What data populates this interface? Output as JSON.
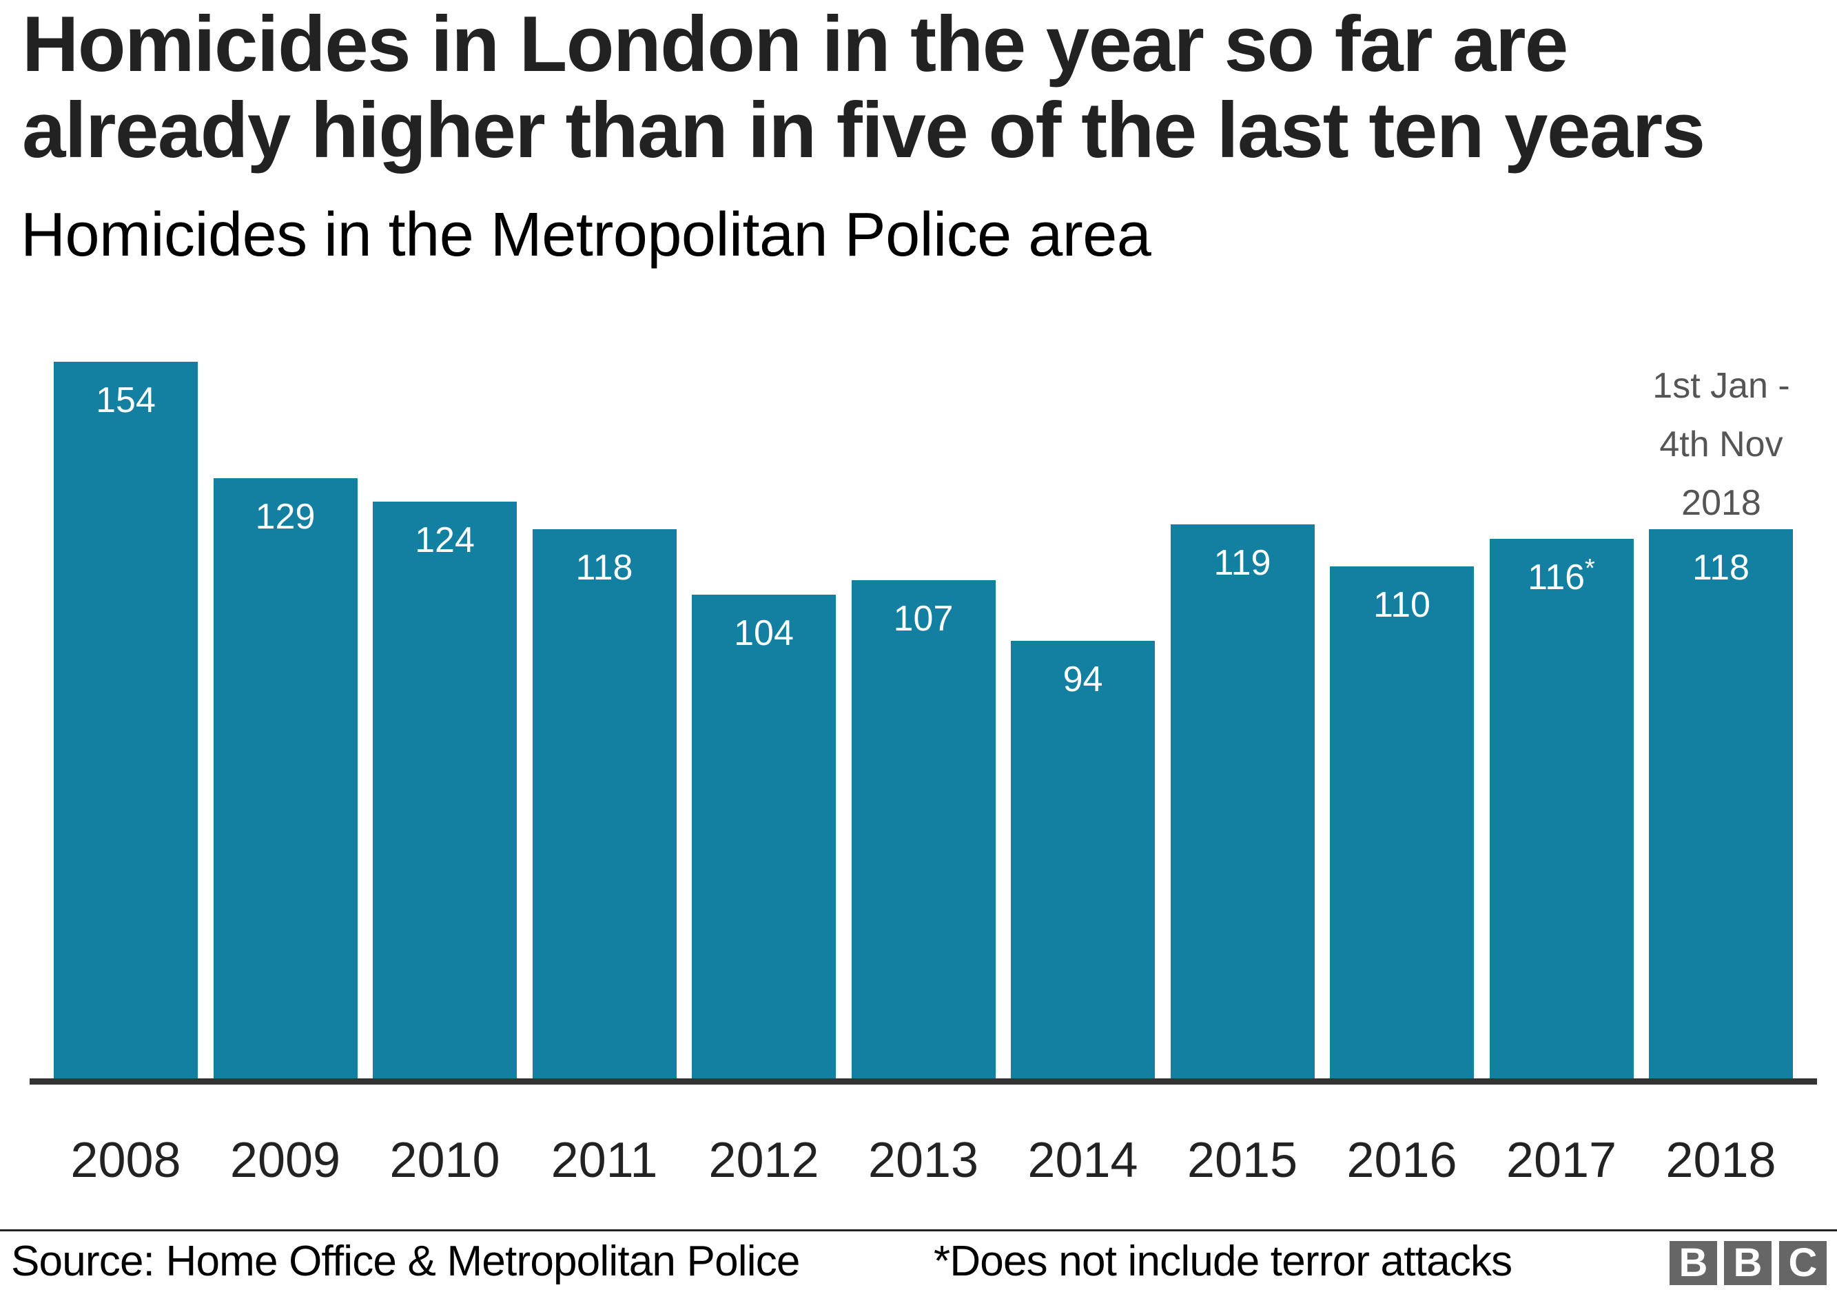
{
  "header": {
    "title_lines": [
      "Homicides in London in the year so far are",
      "already higher than in five of the last ten years"
    ],
    "subtitle": "Homicides in the Metropolitan Police area"
  },
  "chart_data": {
    "type": "bar",
    "title": "Homicides in London in the year so far are already higher than in five of the last ten years",
    "subtitle": "Homicides in the Metropolitan Police area",
    "xlabel": "",
    "ylabel": "",
    "categories": [
      "2008",
      "2009",
      "2010",
      "2011",
      "2012",
      "2013",
      "2014",
      "2015",
      "2016",
      "2017",
      "2018"
    ],
    "values": [
      154,
      129,
      124,
      118,
      104,
      107,
      94,
      119,
      110,
      116,
      118
    ],
    "value_labels": [
      "154",
      "129",
      "124",
      "118",
      "104",
      "107",
      "94",
      "119",
      "110",
      "116",
      "118"
    ],
    "value_label_markers": [
      "",
      "",
      "",
      "",
      "",
      "",
      "",
      "",
      "",
      "*",
      ""
    ],
    "ylim": [
      0,
      154
    ],
    "grid": false,
    "legend": null,
    "bar_color": "#1380A1",
    "annotations": [
      {
        "category": "2018",
        "lines": [
          "1st Jan -",
          "4th Nov",
          "2018"
        ],
        "color": "#555555"
      }
    ]
  },
  "footer": {
    "source": "Source: Home Office & Metropolitan Police",
    "note": "*Does not include terror attacks",
    "logo_letters": [
      "B",
      "B",
      "C"
    ]
  },
  "colors": {
    "bar": "#1380A1",
    "axis": "#333333",
    "title": "#222222",
    "annotation": "#555555",
    "logo_box": "#666666"
  }
}
